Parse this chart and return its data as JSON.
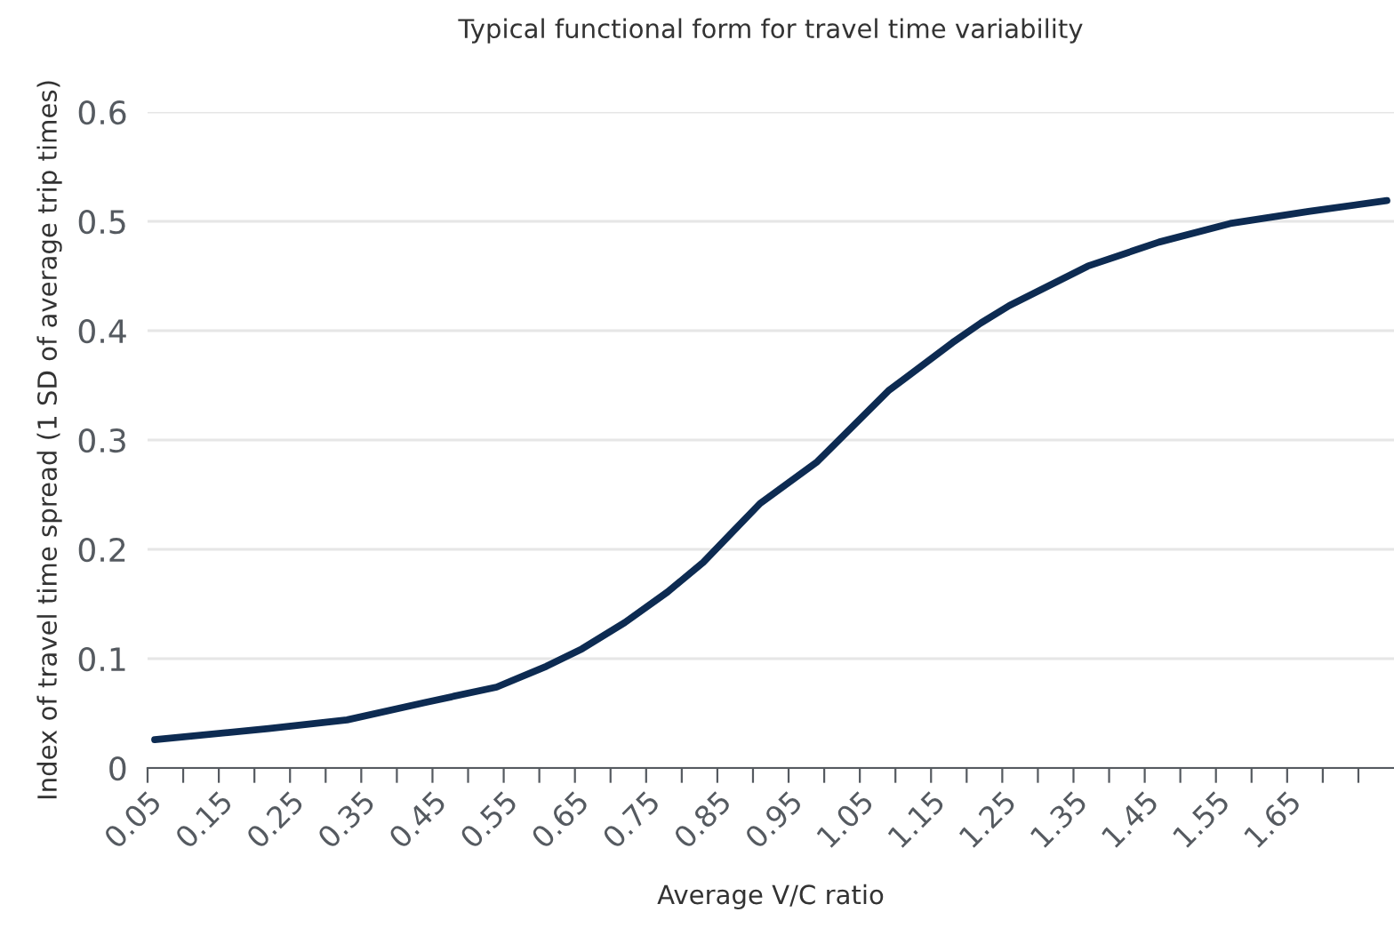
{
  "chart_data": {
    "type": "line",
    "title": "Typical functional form for travel time variability",
    "xlabel": "Average V/C ratio",
    "ylabel": "Index of travel time spread (1 SD of average trip times)",
    "x": [
      0.06,
      0.22,
      0.33,
      0.44,
      0.54,
      0.61,
      0.66,
      0.72,
      0.78,
      0.83,
      0.87,
      0.91,
      0.99,
      1.09,
      1.18,
      1.22,
      1.26,
      1.37,
      1.47,
      1.57,
      1.68,
      1.79
    ],
    "series": [
      {
        "color": "#0d2b52",
        "values": [
          0.026,
          0.036,
          0.044,
          0.06,
          0.074,
          0.093,
          0.109,
          0.133,
          0.161,
          0.188,
          0.215,
          0.242,
          0.28,
          0.345,
          0.389,
          0.407,
          0.423,
          0.459,
          0.481,
          0.498,
          0.509,
          0.519
        ]
      }
    ],
    "xlim": [
      0.05,
      1.8
    ],
    "xticks": [
      0.05,
      {
        "value": 0.1,
        "label": null
      },
      0.15,
      {
        "value": 0.2,
        "label": null
      },
      0.25,
      {
        "value": 0.3,
        "label": null
      },
      0.35,
      {
        "value": 0.4,
        "label": null
      },
      0.45,
      {
        "value": 0.5,
        "label": null
      },
      0.55,
      {
        "value": 0.6,
        "label": null
      },
      0.65,
      {
        "value": 0.7,
        "label": null
      },
      0.75,
      {
        "value": 0.8,
        "label": null
      },
      0.85,
      {
        "value": 0.9,
        "label": null
      },
      0.95,
      {
        "value": 1.0,
        "label": null
      },
      1.05,
      {
        "value": 1.1,
        "label": null
      },
      1.15,
      {
        "value": 1.2,
        "label": null
      },
      1.25,
      {
        "value": 1.3,
        "label": null
      },
      1.35,
      {
        "value": 1.4,
        "label": null
      },
      1.45,
      {
        "value": 1.5,
        "label": null
      },
      1.55,
      {
        "value": 1.6,
        "label": null
      },
      1.65,
      {
        "value": 1.7,
        "label": null
      },
      {
        "value": 1.75,
        "label": null
      }
    ],
    "ylim": [
      0,
      0.6
    ],
    "yticks": [
      0,
      0.1,
      0.2,
      0.3,
      0.4,
      0.5,
      0.6
    ],
    "grid": "y",
    "marker": "none",
    "line_style": "solid",
    "legend": false
  }
}
